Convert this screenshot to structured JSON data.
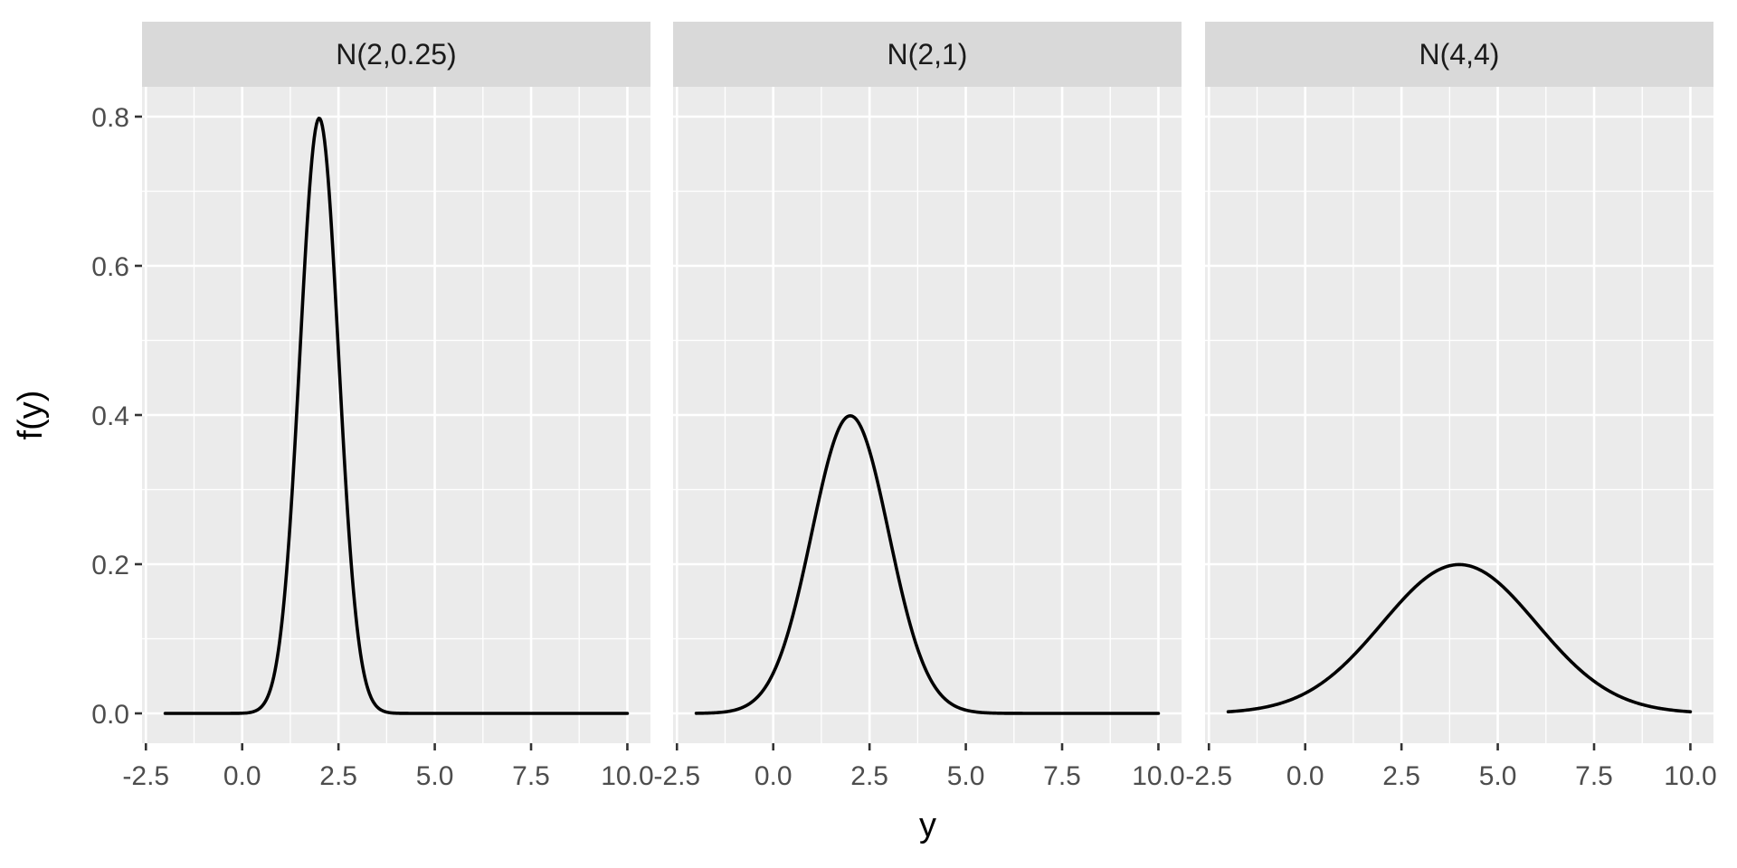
{
  "chart_data": {
    "type": "line",
    "layout": "facet_wrap",
    "xlabel": "y",
    "ylabel": "f(y)",
    "xlim": [
      -2.6,
      10.6
    ],
    "ylim": [
      -0.04,
      0.84
    ],
    "x_ticks": [
      -2.5,
      0,
      2.5,
      5,
      7.5,
      10
    ],
    "x_tick_labels": [
      "-2.5",
      "0.0",
      "2.5",
      "5.0",
      "7.5",
      "10.0"
    ],
    "y_ticks": [
      0,
      0.2,
      0.4,
      0.6,
      0.8
    ],
    "y_tick_labels": [
      "0.0",
      "0.2",
      "0.4",
      "0.6",
      "0.8"
    ],
    "grid": true,
    "line_color": "#000000",
    "panel_background": "#ebebeb",
    "strip_background": "#d9d9d9",
    "panels": [
      {
        "title": "N(2,0.25)",
        "x": [
          -2,
          -1,
          0,
          0.5,
          1,
          1.25,
          1.5,
          1.75,
          2,
          2.25,
          2.5,
          2.75,
          3,
          3.5,
          4,
          5,
          7.5,
          10
        ],
        "y": [
          0,
          0,
          0.0003,
          0.0089,
          0.108,
          0.259,
          0.4839,
          0.7041,
          0.7979,
          0.7041,
          0.4839,
          0.259,
          0.108,
          0.0089,
          0.0003,
          0,
          0,
          0
        ]
      },
      {
        "title": "N(2,1)",
        "x": [
          -2,
          -1,
          0,
          0.5,
          1,
          1.5,
          2,
          2.5,
          3,
          3.5,
          4,
          5,
          6,
          7.5,
          10
        ],
        "y": [
          0.0001,
          0.0044,
          0.054,
          0.1295,
          0.242,
          0.3521,
          0.3989,
          0.3521,
          0.242,
          0.1295,
          0.054,
          0.0044,
          0.0001,
          0,
          0
        ]
      },
      {
        "title": "N(4,4)",
        "x": [
          -2,
          -1,
          0,
          1,
          2,
          3,
          4,
          5,
          6,
          7,
          8,
          9,
          10
        ],
        "y": [
          0.0022,
          0.0088,
          0.027,
          0.0648,
          0.121,
          0.176,
          0.1995,
          0.176,
          0.121,
          0.0648,
          0.027,
          0.0088,
          0.0022
        ]
      }
    ]
  }
}
